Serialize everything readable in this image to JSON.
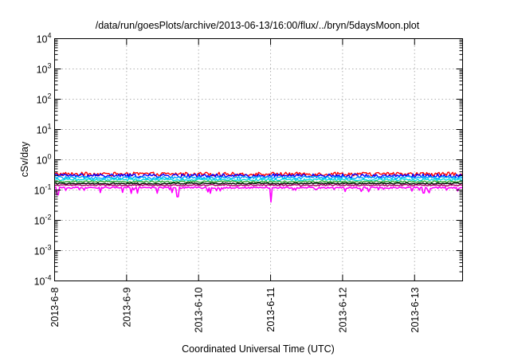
{
  "chart_data": {
    "type": "line",
    "title": "/data/run/goesPlots/archive/2013-06-13/16:00/flux/../bryn/5daysMoon.plot",
    "xlabel": "Coordinated Universal Time (UTC)",
    "ylabel": "cSv/day",
    "yscale": "log",
    "ylim": [
      0.0001,
      10000
    ],
    "xlim": [
      "2013-06-08 00:00",
      "2013-06-13 16:00"
    ],
    "grid": true,
    "y_ticks": [
      {
        "base": "10",
        "exp": "-4"
      },
      {
        "base": "10",
        "exp": "-3"
      },
      {
        "base": "10",
        "exp": "-2"
      },
      {
        "base": "10",
        "exp": "-1"
      },
      {
        "base": "10",
        "exp": "0"
      },
      {
        "base": "10",
        "exp": "1"
      },
      {
        "base": "10",
        "exp": "2"
      },
      {
        "base": "10",
        "exp": "3"
      },
      {
        "base": "10",
        "exp": "4"
      }
    ],
    "x_ticks": [
      "2013-6-8",
      "2013-6-9",
      "2013-6-10",
      "2013-6-11",
      "2013-6-12",
      "2013-6-13"
    ],
    "series": [
      {
        "color": "#ff0000",
        "level": 0.34,
        "amplitude": 0.14,
        "dip_amp": 0.05
      },
      {
        "color": "#0000ff",
        "level": 0.3,
        "amplitude": 0.14,
        "dip_amp": 0.06
      },
      {
        "color": "#00aaff",
        "level": 0.26,
        "amplitude": 0.1,
        "dip_amp": 0.05
      },
      {
        "color": "#00dddd",
        "level": 0.22,
        "amplitude": 0.08,
        "dip_amp": 0.05
      },
      {
        "color": "#33aa33",
        "level": 0.19,
        "amplitude": 0.06,
        "dip_amp": 0.04
      },
      {
        "color": "#000000",
        "level": 0.165,
        "amplitude": 0.05,
        "dip_amp": 0.04
      },
      {
        "color": "#aa0066",
        "level": 0.145,
        "amplitude": 0.05,
        "dip_amp": 0.05
      },
      {
        "color": "#ff00ff",
        "level": 0.12,
        "amplitude": 0.06,
        "dip_amp": 0.35
      }
    ],
    "notable_dips": [
      {
        "series_color": "#ff00ff",
        "x": "2013-06-08 01:00",
        "y": 0.07
      },
      {
        "series_color": "#ff00ff",
        "x": "2013-06-09 17:00",
        "y": 0.06
      },
      {
        "series_color": "#ff00ff",
        "x": "2013-06-11 00:10",
        "y": 0.04
      },
      {
        "series_color": "#ff00ff",
        "x": "2013-06-13 03:00",
        "y": 0.08
      }
    ]
  }
}
